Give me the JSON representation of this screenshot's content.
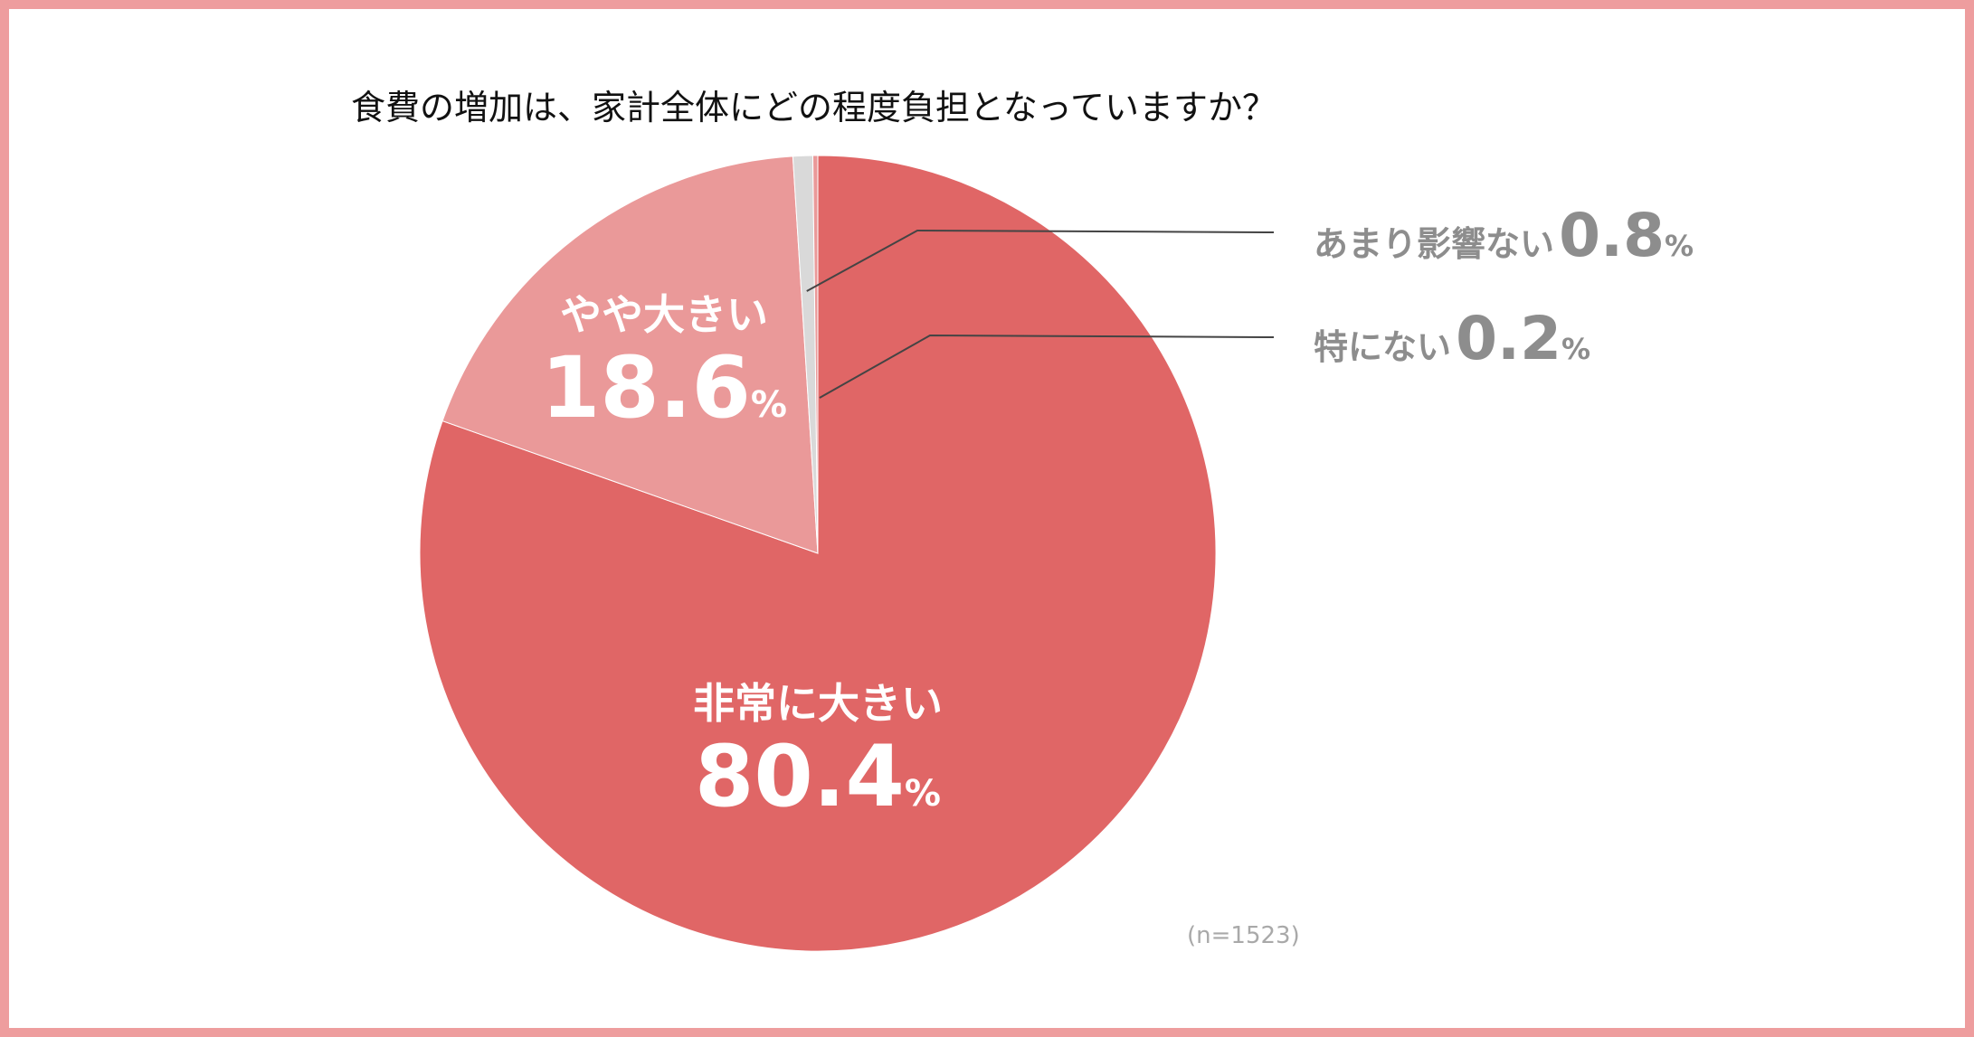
{
  "chart_data": {
    "type": "pie",
    "title": "食費の増加は、家計全体にどの程度負担となっていますか？",
    "note": "(n=1523)",
    "unit": "%",
    "slices": [
      {
        "label": "非常に大きい",
        "value": 80.4,
        "value_text": "80.4",
        "color": "#e06666",
        "label_style": "inside"
      },
      {
        "label": "やや大きい",
        "value": 18.6,
        "value_text": "18.6",
        "color": "#ea9999",
        "label_style": "inside"
      },
      {
        "label": "あまり影響ない",
        "value": 0.8,
        "value_text": "0.8",
        "color": "#d9d9d9",
        "label_style": "callout"
      },
      {
        "label": "特にない",
        "value": 0.2,
        "value_text": "0.2",
        "color": "#ea9999",
        "label_style": "callout"
      }
    ]
  },
  "colors": {
    "frame": "#ee9d9e",
    "callout_text": "#8d8d8d",
    "leader_line": "#444444"
  }
}
